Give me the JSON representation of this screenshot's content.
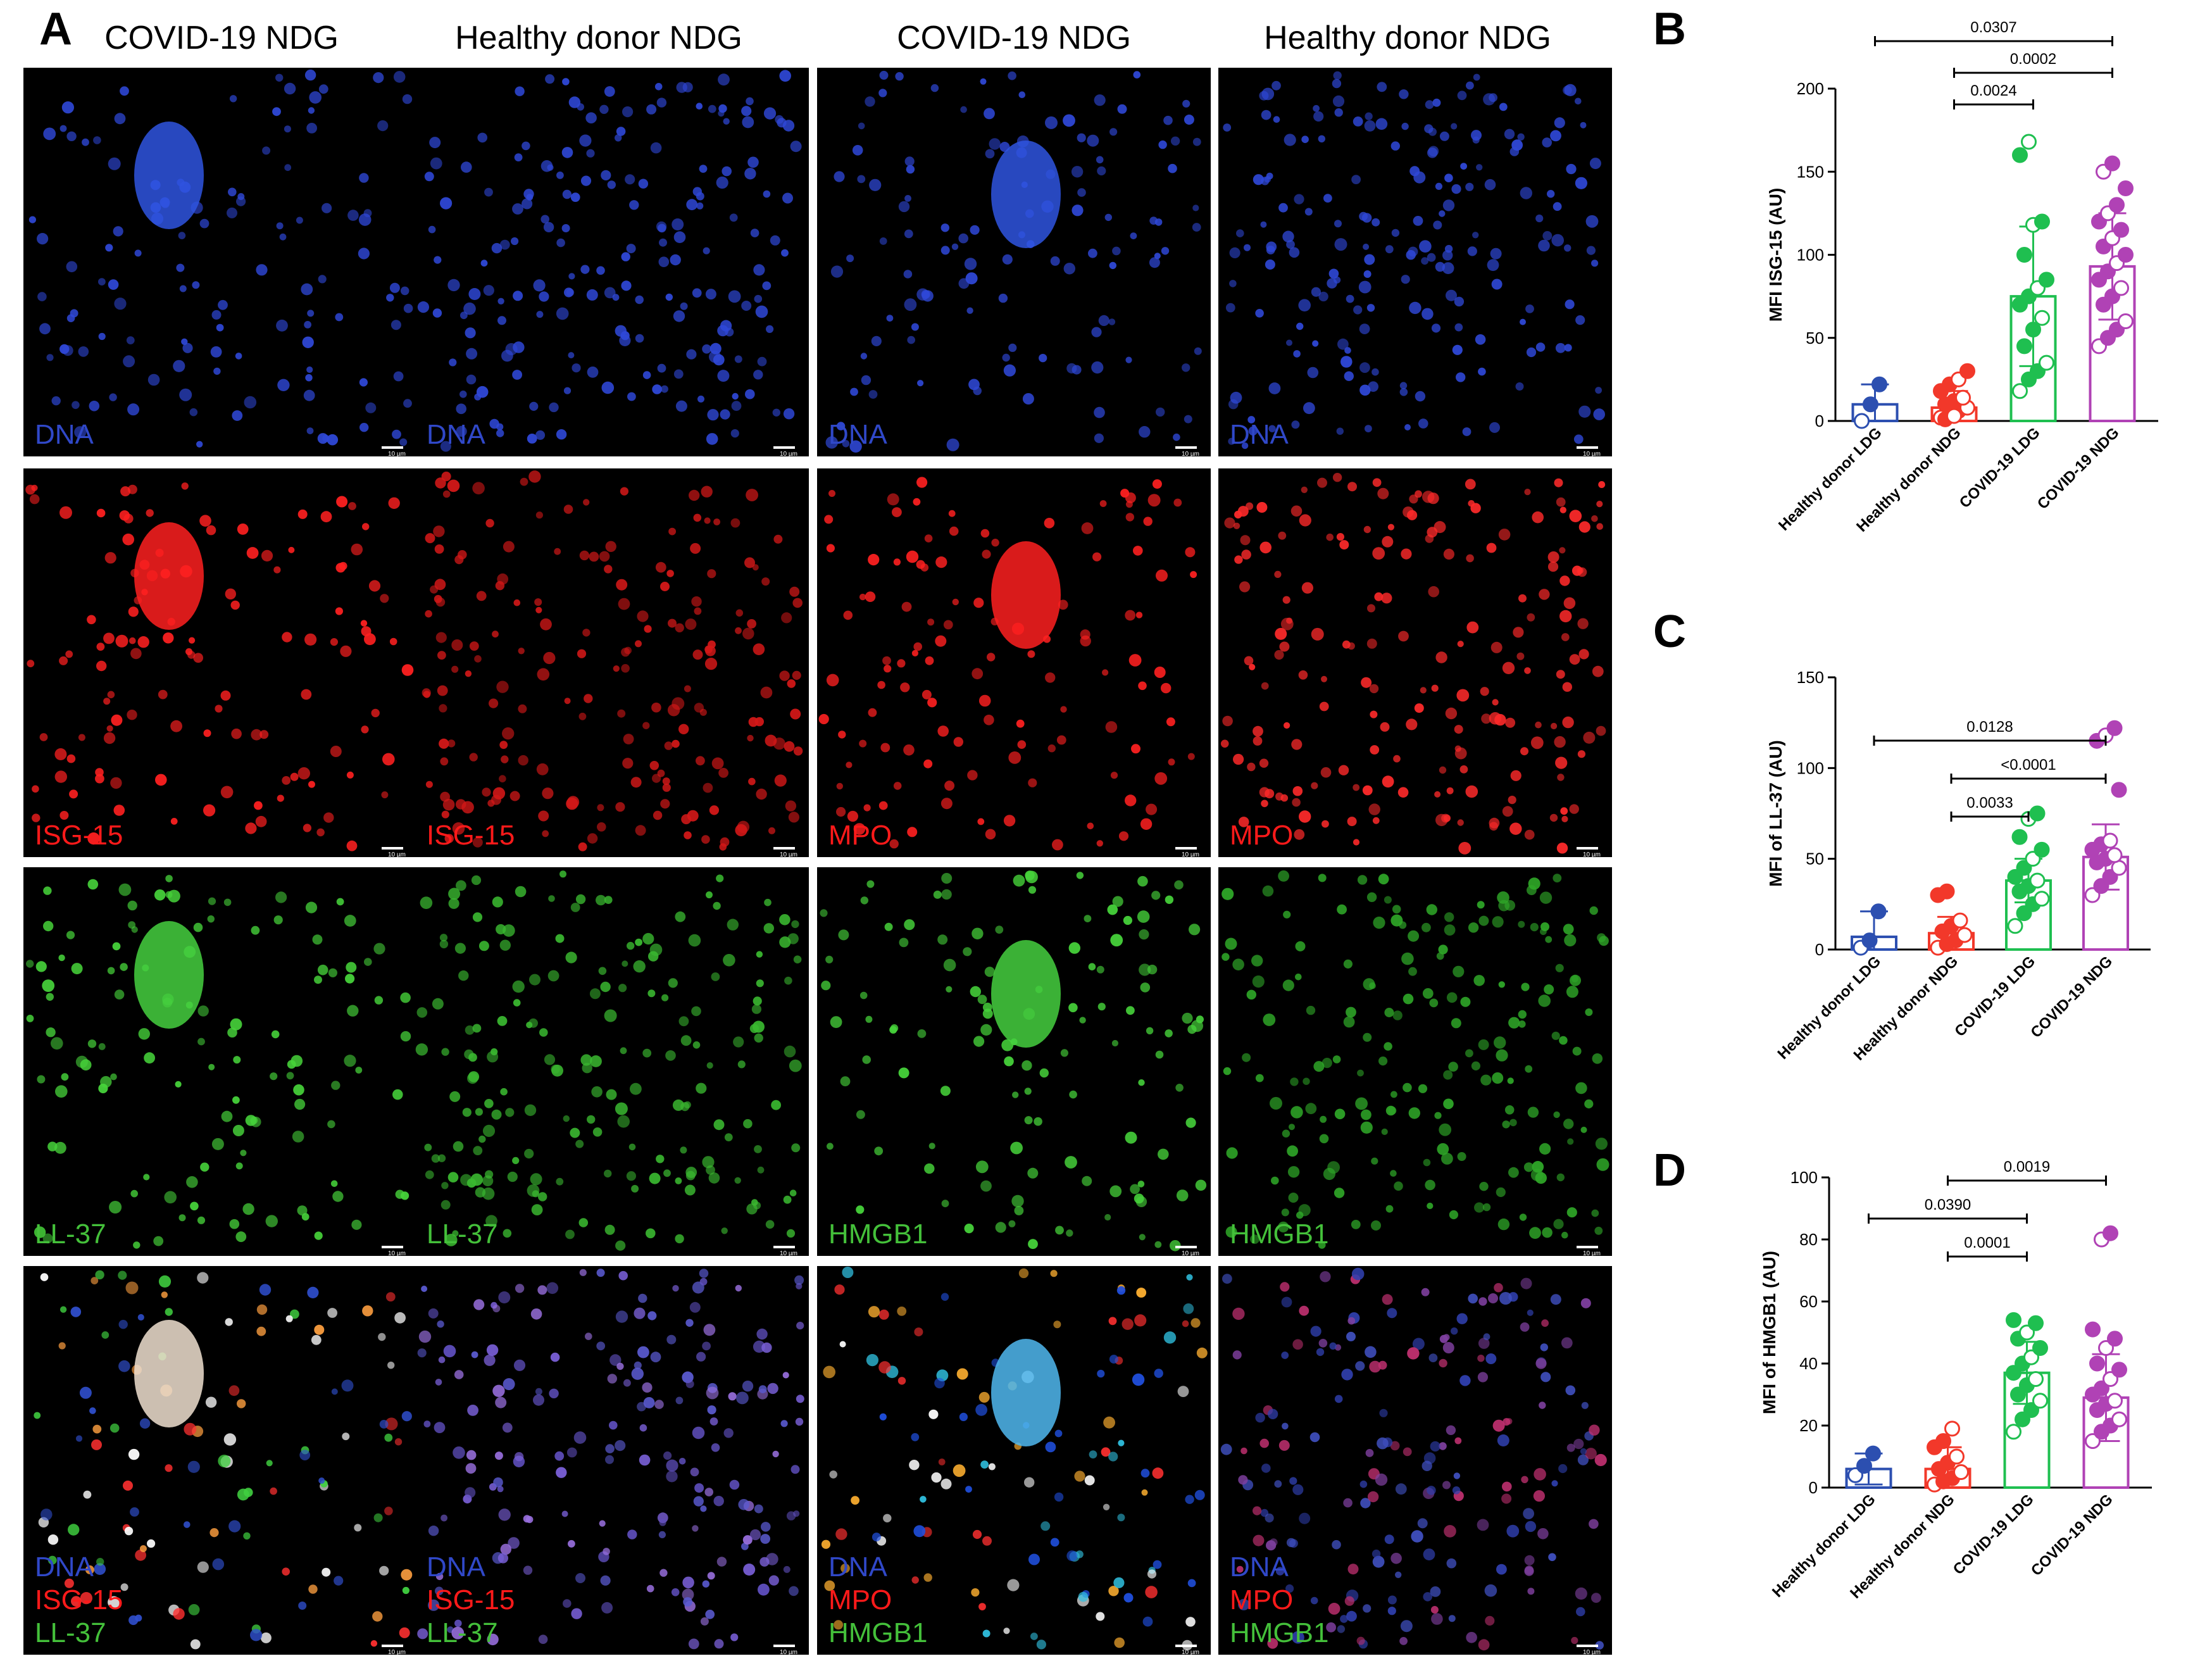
{
  "panels": {
    "A": "A",
    "B": "B",
    "C": "C",
    "D": "D"
  },
  "columns": [
    "COVID-19 NDG",
    "Healthy donor NDG",
    "COVID-19 NDG",
    "Healthy donor NDG"
  ],
  "tile_labels": {
    "row1": [
      "DNA",
      "DNA",
      "DNA",
      "DNA"
    ],
    "row2": [
      "ISG-15",
      "ISG-15",
      "MPO",
      "MPO"
    ],
    "row3": [
      "LL-37",
      "LL-37",
      "HMGB1",
      "HMGB1"
    ],
    "row4": [
      [
        "DNA",
        "ISG-15",
        "LL-37"
      ],
      [
        "DNA",
        "ISG-15",
        "LL-37"
      ],
      [
        "DNA",
        "MPO",
        "HMGB1"
      ],
      [
        "DNA",
        "MPO",
        "HMGB1"
      ]
    ]
  },
  "scale_bar_text": "10 µm",
  "colors": {
    "dna": "#3048c8",
    "red": "#ff1a1a",
    "green": "#44c03a",
    "blue_group": "#2c4fb0",
    "red_group": "#f2382a",
    "green_group": "#1fbf50",
    "purple_group": "#b042b5"
  },
  "chart_data": [
    {
      "panel": "B",
      "type": "bar",
      "categories": [
        "Healthy donor LDG",
        "Healthy donor NDG",
        "COVID-19 LDG",
        "COVID-19 NDG"
      ],
      "values": [
        10,
        8,
        75,
        93
      ],
      "sd": [
        12,
        10,
        42,
        32
      ],
      "points": [
        [
          0,
          10,
          22
        ],
        [
          2,
          4,
          6,
          8,
          10,
          12,
          14,
          18,
          22,
          25,
          30,
          1,
          3
        ],
        [
          18,
          25,
          30,
          35,
          45,
          55,
          62,
          70,
          75,
          80,
          85,
          100,
          118,
          120,
          160,
          168
        ],
        [
          45,
          50,
          55,
          60,
          70,
          75,
          80,
          85,
          90,
          95,
          100,
          105,
          110,
          115,
          120,
          125,
          130,
          140,
          150,
          155
        ]
      ],
      "ylabel": "MFI ISG-15 (AU)",
      "ylim": [
        0,
        200
      ],
      "yticks": [
        0,
        50,
        100,
        150,
        200
      ],
      "brackets": [
        {
          "from": 2,
          "to": 3,
          "label": "0.0024"
        },
        {
          "from": 2,
          "to": 4,
          "label": "0.0002"
        },
        {
          "from": 1,
          "to": 4,
          "label": "0.0307"
        }
      ]
    },
    {
      "panel": "C",
      "type": "bar",
      "categories": [
        "Healthy donor LDG",
        "Healthy donor NDG",
        "COVID-19 LDG",
        "COVID-19 NDG"
      ],
      "values": [
        7,
        9,
        38,
        51
      ],
      "sd": [
        14,
        9,
        12,
        18
      ],
      "points": [
        [
          1,
          5,
          21
        ],
        [
          1,
          3,
          5,
          8,
          10,
          13,
          16,
          30,
          32
        ],
        [
          13,
          20,
          25,
          28,
          32,
          35,
          38,
          40,
          45,
          50,
          55,
          62,
          72,
          75
        ],
        [
          30,
          35,
          40,
          45,
          48,
          50,
          52,
          55,
          58,
          60,
          88,
          115,
          118,
          122
        ]
      ],
      "ylabel": "MFI of LL-37  (AU)",
      "ylim": [
        0,
        150
      ],
      "yticks": [
        0,
        50,
        100,
        150
      ],
      "brackets": [
        {
          "from": 2,
          "to": 3,
          "label": "0.0033"
        },
        {
          "from": 2,
          "to": 4,
          "label": "<0.0001"
        },
        {
          "from": 1,
          "to": 4,
          "label": "0.0128"
        }
      ]
    },
    {
      "panel": "D",
      "type": "bar",
      "categories": [
        "Healthy donor LDG",
        "Healthy donor NDG",
        "COVID-19 LDG",
        "COVID-19 NDG"
      ],
      "values": [
        6,
        6,
        37,
        29
      ],
      "sd": [
        5,
        7,
        10,
        14
      ],
      "points": [
        [
          4,
          7,
          11
        ],
        [
          1,
          2,
          3,
          5,
          6,
          8,
          10,
          13,
          15,
          19
        ],
        [
          18,
          22,
          25,
          28,
          30,
          33,
          35,
          37,
          40,
          42,
          45,
          48,
          50,
          53,
          54
        ],
        [
          15,
          18,
          20,
          22,
          25,
          27,
          28,
          30,
          32,
          35,
          38,
          40,
          45,
          48,
          51,
          80,
          82
        ]
      ],
      "ylabel": "MFI of HMGB1 (AU)",
      "ylim": [
        0,
        100
      ],
      "yticks": [
        0,
        20,
        40,
        60,
        80,
        100
      ],
      "brackets": [
        {
          "from": 2,
          "to": 3,
          "label": "0.0001"
        },
        {
          "from": 1,
          "to": 3,
          "label": "0.0390"
        },
        {
          "from": 2,
          "to": 4,
          "label": "0.0019"
        }
      ]
    }
  ]
}
